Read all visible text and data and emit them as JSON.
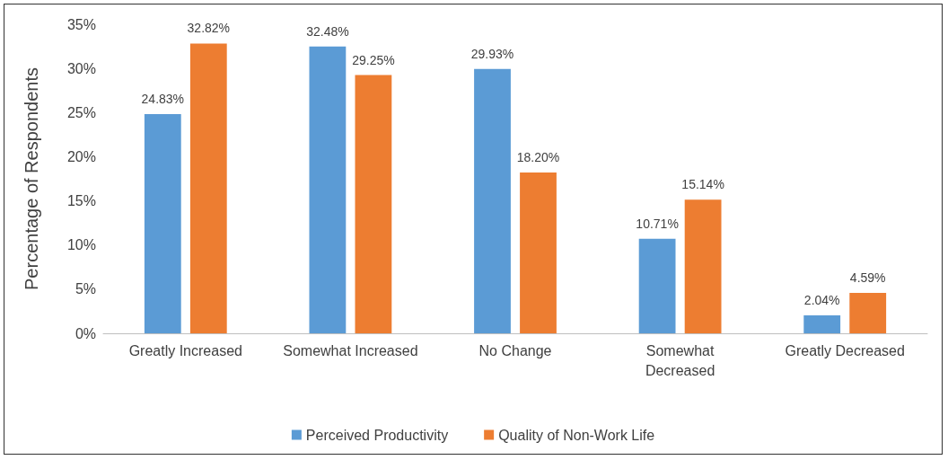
{
  "chart_data": {
    "type": "bar",
    "ylabel": "Percentage of Respondents",
    "categories": [
      "Greatly Increased",
      "Somewhat Increased",
      "No Change",
      "Somewhat\nDecreased",
      "Greatly Decreased"
    ],
    "series": [
      {
        "name": "Perceived Productivity",
        "color": "#5b9bd5",
        "values": [
          24.83,
          32.48,
          29.93,
          10.71,
          2.04
        ],
        "value_labels": [
          "24.83%",
          "32.48%",
          "29.93%",
          "10.71%",
          "2.04%"
        ]
      },
      {
        "name": "Quality of Non-Work Life",
        "color": "#ed7d31",
        "values": [
          32.82,
          29.25,
          18.2,
          15.14,
          4.59
        ],
        "value_labels": [
          "32.82%",
          "29.25%",
          "18.20%",
          "15.14%",
          "4.59%"
        ]
      }
    ],
    "ylim": [
      0,
      35
    ],
    "yticks": [
      {
        "value": 0,
        "label": "0%"
      },
      {
        "value": 5,
        "label": "5%"
      },
      {
        "value": 10,
        "label": "10%"
      },
      {
        "value": 15,
        "label": "15%"
      },
      {
        "value": 20,
        "label": "20%"
      },
      {
        "value": 25,
        "label": "25%"
      },
      {
        "value": 30,
        "label": "30%"
      },
      {
        "value": 35,
        "label": "35%"
      }
    ],
    "grid": false,
    "legend": "bottom"
  }
}
